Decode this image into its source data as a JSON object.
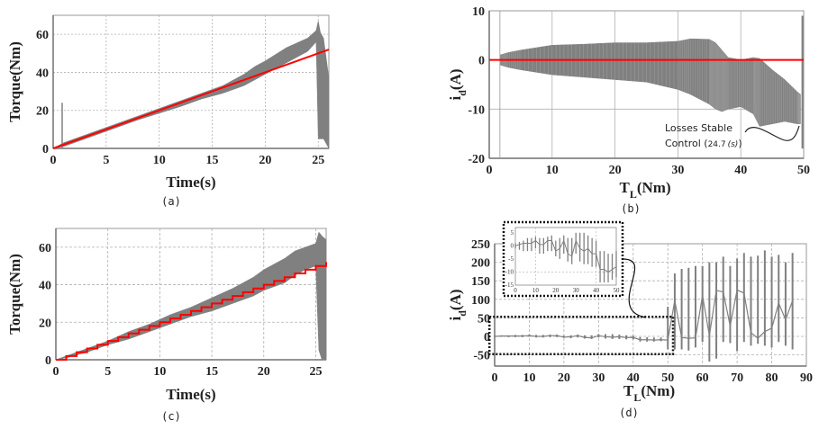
{
  "colors": {
    "measured": "#808080",
    "reference": "#ff0000",
    "grid": "#b0b0b0",
    "frame": "#707070"
  },
  "chart_data": [
    {
      "id": "a",
      "type": "area",
      "caption": "(a)",
      "xlabel": "Time(s)",
      "ylabel": "Torque(Nm)",
      "xlim": [
        0,
        26
      ],
      "ylim": [
        0,
        70
      ],
      "xticks": [
        "0",
        "5",
        "10",
        "15",
        "20",
        "25"
      ],
      "xtick_values": [
        0,
        5,
        10,
        15,
        20,
        25
      ],
      "yticks": [
        "0",
        "20",
        "40",
        "60"
      ],
      "ytick_values": [
        0,
        20,
        40,
        60
      ],
      "grid": true,
      "series": [
        {
          "name": "Torque band (measured)",
          "kind": "band",
          "x": [
            0,
            1,
            2,
            4,
            6,
            8,
            10,
            12,
            14,
            16,
            18,
            19,
            20,
            22,
            24,
            24.8,
            25,
            25.2,
            25.5,
            26
          ],
          "upper": [
            0,
            3,
            5,
            9,
            13,
            17,
            21,
            25,
            29,
            33,
            39,
            43,
            46,
            53,
            58,
            62,
            67,
            61,
            58,
            37
          ],
          "lower": [
            0,
            1,
            3,
            7,
            11,
            15,
            18.5,
            22,
            26,
            29,
            33,
            36,
            39,
            45,
            51,
            56,
            5,
            5,
            5,
            0
          ]
        },
        {
          "name": "Startup spike",
          "kind": "spike",
          "x": [
            0.85
          ],
          "y": [
            24
          ]
        },
        {
          "name": "Reference torque",
          "kind": "line",
          "x": [
            0,
            26
          ],
          "y": [
            0,
            52
          ]
        }
      ]
    },
    {
      "id": "b",
      "type": "area",
      "caption": "(b)",
      "xlabel": "T_L(Nm)",
      "xlabel_main": "T",
      "xlabel_sub": "L",
      "xlabel_rest": "(Nm)",
      "ylabel": "i_d(A)",
      "ylabel_main": "i",
      "ylabel_sub": "d",
      "ylabel_rest": "(A)",
      "xlim": [
        0,
        50
      ],
      "ylim": [
        -20,
        10
      ],
      "xticks": [
        "0",
        "10",
        "20",
        "30",
        "40",
        "50"
      ],
      "xtick_values": [
        0,
        10,
        20,
        30,
        40,
        50
      ],
      "yticks": [
        "-20",
        "-10",
        "0",
        "10"
      ],
      "ytick_values": [
        -20,
        -10,
        0,
        10
      ],
      "grid": true,
      "annotation": {
        "line1": "Losses Stable",
        "line2": "Control (",
        "value": "24.7",
        "unit": "(s)",
        "close": ")"
      },
      "series": [
        {
          "name": "i_d band (measured)",
          "kind": "band",
          "x": [
            1.7,
            3,
            5,
            10,
            15,
            20,
            25,
            30,
            32,
            35,
            36,
            37,
            38,
            40,
            42,
            43,
            45,
            47,
            49,
            49.5
          ],
          "upper": [
            1,
            1.5,
            2,
            3,
            3.2,
            3.5,
            3.5,
            3.8,
            4.3,
            4.2,
            3.5,
            2,
            0.5,
            0,
            0.5,
            0.3,
            -2,
            -4,
            -6.5,
            -7
          ],
          "lower": [
            -1,
            -1.5,
            -2,
            -3,
            -3.5,
            -4,
            -4.5,
            -6,
            -7,
            -9,
            -10,
            -10.5,
            -10,
            -9.5,
            -11,
            -13.5,
            -13,
            -12.5,
            -13,
            -13
          ]
        },
        {
          "name": "Final transient",
          "kind": "spike",
          "x": [
            49.8
          ],
          "y": [
            9
          ],
          "y2": [
            -18
          ]
        },
        {
          "name": "Reference i_d",
          "kind": "line",
          "x": [
            0,
            50
          ],
          "y": [
            0,
            0
          ]
        }
      ]
    },
    {
      "id": "c",
      "type": "area",
      "caption": "(c)",
      "xlabel": "Time(s)",
      "ylabel": "Torque(Nm)",
      "xlim": [
        0,
        26
      ],
      "ylim": [
        0,
        70
      ],
      "xticks": [
        "0",
        "5",
        "10",
        "15",
        "20",
        "25"
      ],
      "xtick_values": [
        0,
        5,
        10,
        15,
        20,
        25
      ],
      "yticks": [
        "0",
        "20",
        "40",
        "60"
      ],
      "ytick_values": [
        0,
        20,
        40,
        60
      ],
      "grid": true,
      "series": [
        {
          "name": "Torque band (measured)",
          "kind": "band",
          "x": [
            0,
            1,
            3,
            5,
            7,
            9,
            11,
            13,
            15,
            17,
            19,
            20,
            22,
            23,
            24,
            25,
            25.3,
            25.6,
            26
          ],
          "upper": [
            0,
            2,
            6,
            10,
            15,
            19,
            24,
            28,
            33,
            38,
            44,
            48,
            54,
            58,
            60,
            62,
            68,
            66,
            64
          ],
          "lower": [
            0,
            1,
            4,
            8,
            11,
            15,
            19,
            23,
            26,
            30,
            34,
            37,
            41,
            45,
            48,
            50,
            5,
            0,
            0
          ]
        },
        {
          "name": "Reference torque (stepped)",
          "kind": "step",
          "x": [
            0,
            1,
            2,
            3,
            4,
            5,
            6,
            7,
            8,
            9,
            10,
            11,
            12,
            13,
            14,
            15,
            16,
            17,
            18,
            19,
            20,
            21,
            22,
            23,
            24,
            25,
            26
          ],
          "y": [
            0,
            2,
            4,
            6,
            8,
            10,
            12,
            14,
            16,
            18,
            20,
            22,
            24,
            26,
            28,
            30,
            32,
            34,
            36,
            38,
            40,
            42,
            44,
            46,
            48,
            50,
            52
          ]
        }
      ]
    },
    {
      "id": "d",
      "type": "errorbar",
      "caption": "(d)",
      "xlabel": "T_L(Nm)",
      "xlabel_main": "T",
      "xlabel_sub": "L",
      "xlabel_rest": "(Nm)",
      "ylabel": "i_d(A)",
      "ylabel_main": "i",
      "ylabel_sub": "d",
      "ylabel_rest": "(A)",
      "xlim": [
        0,
        90
      ],
      "ylim": [
        -80,
        250
      ],
      "xticks": [
        "0",
        "10",
        "20",
        "30",
        "40",
        "50",
        "60",
        "70",
        "80",
        "90"
      ],
      "xtick_values": [
        0,
        10,
        20,
        30,
        40,
        50,
        60,
        70,
        80,
        90
      ],
      "yticks": [
        "-50",
        "0",
        "50",
        "100",
        "150",
        "200",
        "250"
      ],
      "ytick_values": [
        -50,
        0,
        50,
        100,
        150,
        200,
        250
      ],
      "grid": true,
      "series": [
        {
          "name": "Mean i_d with range",
          "x": [
            0,
            2,
            4,
            6,
            8,
            10,
            12,
            14,
            16,
            18,
            20,
            22,
            24,
            26,
            28,
            30,
            32,
            34,
            36,
            38,
            40,
            42,
            44,
            46,
            48,
            50,
            52,
            54,
            56,
            58,
            60,
            62,
            64,
            66,
            68,
            70,
            72,
            74,
            76,
            78,
            80,
            82,
            84,
            86
          ],
          "mean": [
            0,
            1,
            1,
            1,
            1,
            2,
            0,
            0,
            2,
            2,
            -2,
            -1,
            2,
            -3,
            -4,
            2,
            -1,
            -2,
            -1,
            -3,
            -3,
            -9,
            -9,
            -10,
            -9,
            -10,
            97,
            -3,
            -5,
            -4,
            110,
            2,
            124,
            120,
            28,
            125,
            117,
            10,
            -5,
            13,
            22,
            90,
            45,
            96
          ],
          "low": [
            -1,
            -1,
            -2,
            -2,
            -2,
            -1,
            -3,
            -3,
            -2,
            -2,
            -4,
            -5,
            -3,
            -6,
            -7,
            -3,
            -6,
            -7,
            -7,
            -8,
            -8,
            -14,
            -14,
            -14,
            -13,
            -35,
            -35,
            -35,
            -38,
            -30,
            -15,
            -68,
            -60,
            -15,
            -18,
            -40,
            -15,
            -25,
            -20,
            -25,
            -30,
            -15,
            -25,
            -35
          ],
          "high": [
            2,
            3,
            3,
            4,
            4,
            5,
            4,
            4,
            5,
            5,
            2,
            3,
            5,
            3,
            3,
            6,
            6,
            6,
            5,
            3,
            2,
            -2,
            -2,
            -3,
            -3,
            80,
            170,
            182,
            185,
            190,
            190,
            200,
            200,
            215,
            190,
            210,
            225,
            215,
            218,
            232,
            215,
            220,
            200,
            225
          ]
        },
        {
          "name": "Inset (zoom 0-50 Nm)",
          "kind": "inset",
          "xlim": [
            0,
            50
          ],
          "ylim": [
            -15,
            7
          ],
          "xticks": [
            "0",
            "10",
            "20",
            "30",
            "40",
            "50"
          ],
          "xtick_values": [
            0,
            10,
            20,
            30,
            40,
            50
          ],
          "yticks": [
            "5",
            "0",
            "-5",
            "-10",
            "-15"
          ],
          "ytick_values": [
            5,
            0,
            -5,
            -10,
            -15
          ],
          "x": [
            0,
            2,
            4,
            6,
            8,
            10,
            12,
            14,
            16,
            18,
            20,
            22,
            24,
            26,
            28,
            30,
            32,
            34,
            36,
            38,
            40,
            42,
            44,
            46,
            48,
            50
          ],
          "mean": [
            0,
            0.5,
            1,
            1,
            1,
            2,
            0.5,
            0.5,
            2,
            2,
            -2,
            -1,
            2,
            -3,
            -4,
            2,
            -1,
            -2,
            -1,
            -3,
            -3,
            -9,
            -9,
            -10,
            -9,
            -8
          ],
          "low": [
            -1,
            -1.5,
            -2,
            -2,
            -2,
            -1,
            -3,
            -3,
            -2,
            -2,
            -4,
            -5,
            -3,
            -6,
            -7,
            -3,
            -6,
            -7,
            -7,
            -8,
            -8,
            -14,
            -14,
            -14,
            -13,
            -12
          ],
          "high": [
            1,
            1.5,
            2,
            3,
            3,
            3.5,
            3,
            3,
            3.5,
            4,
            2,
            3,
            4,
            3,
            3,
            5,
            5,
            5,
            4,
            3,
            2,
            -2,
            -2,
            -3,
            -3,
            -2
          ]
        }
      ]
    }
  ]
}
